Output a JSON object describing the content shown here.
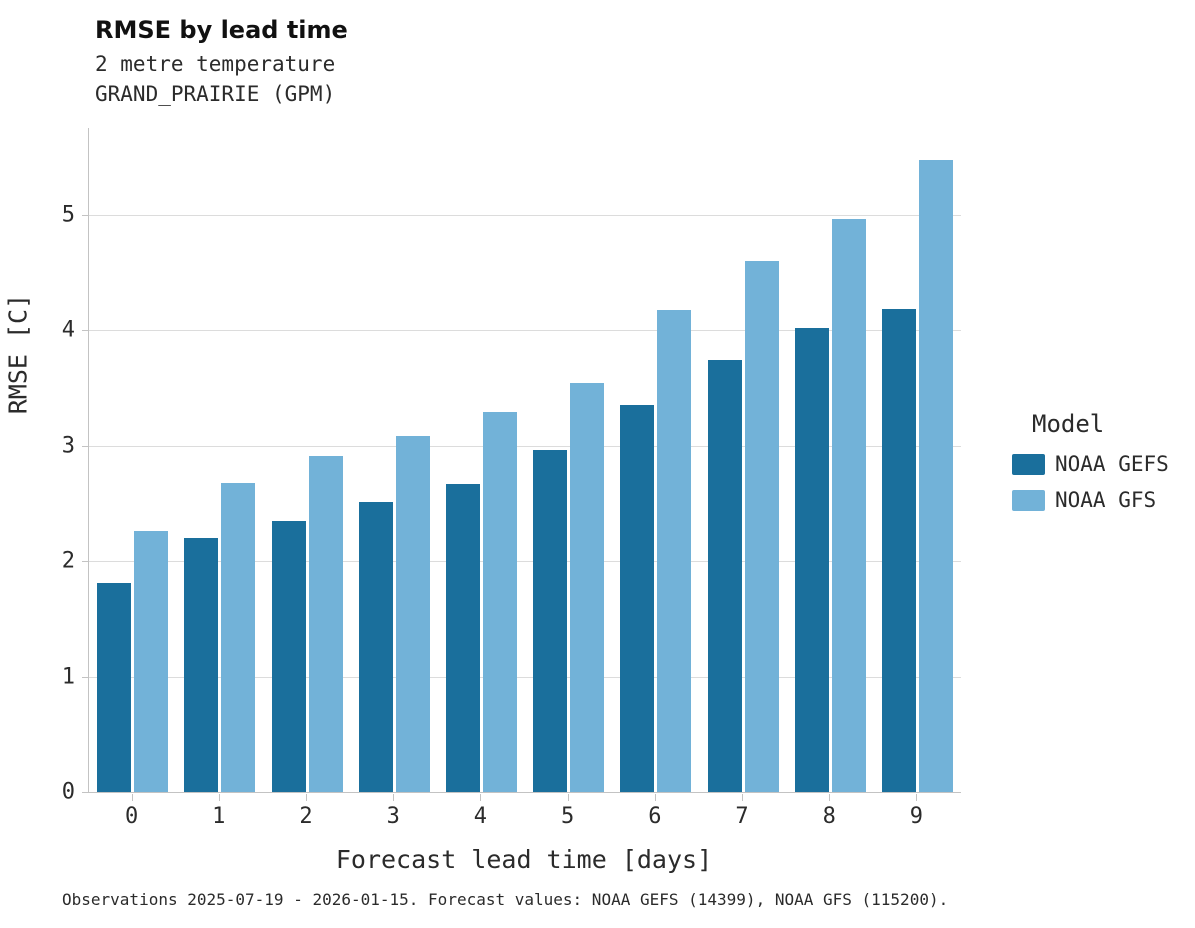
{
  "header": {
    "title": "RMSE by lead time",
    "subtitle_line1": "2 metre temperature",
    "subtitle_line2": "GRAND_PRAIRIE (GPM)"
  },
  "legend": {
    "title": "Model",
    "entries": [
      {
        "label": "NOAA GEFS",
        "color": "#1a6f9c"
      },
      {
        "label": "NOAA GFS",
        "color": "#72b2d8"
      }
    ]
  },
  "caption": "Observations 2025-07-19 - 2026-01-15. Forecast values: NOAA GEFS (14399), NOAA GFS (115200).",
  "chart_data": {
    "type": "bar",
    "title": "RMSE by lead time",
    "subtitle": [
      "2 metre temperature",
      "GRAND_PRAIRIE (GPM)"
    ],
    "xlabel": "Forecast lead time [days]",
    "ylabel": "RMSE [C]",
    "categories": [
      "0",
      "1",
      "2",
      "3",
      "4",
      "5",
      "6",
      "7",
      "8",
      "9"
    ],
    "series": [
      {
        "name": "NOAA GEFS",
        "color": "#1a6f9c",
        "values": [
          1.81,
          2.2,
          2.35,
          2.51,
          2.67,
          2.96,
          3.35,
          3.74,
          4.02,
          4.18
        ]
      },
      {
        "name": "NOAA GFS",
        "color": "#72b2d8",
        "values": [
          2.26,
          2.68,
          2.91,
          3.08,
          3.29,
          3.54,
          4.17,
          4.6,
          4.96,
          5.47
        ]
      }
    ],
    "ylim": [
      0,
      5.75
    ],
    "yticks": [
      0,
      1,
      2,
      3,
      4,
      5
    ],
    "grid": true,
    "legend_position": "right"
  }
}
